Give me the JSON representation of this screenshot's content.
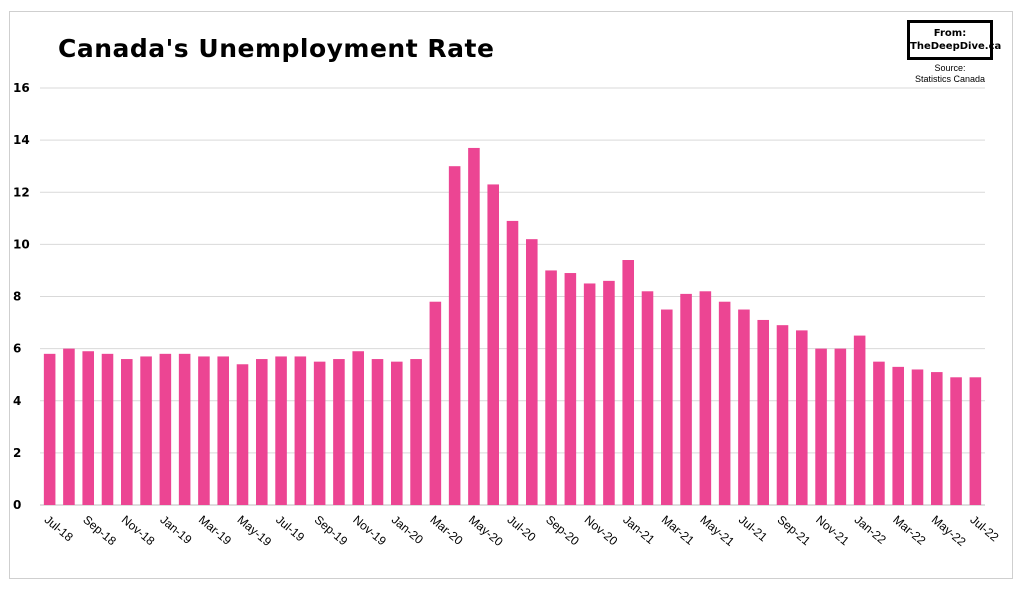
{
  "chart_data": {
    "type": "bar",
    "title": "Canada's Unemployment Rate",
    "xlabel": "",
    "ylabel": "",
    "ylim": [
      0,
      16
    ],
    "yticks": [
      0,
      2,
      4,
      6,
      8,
      10,
      12,
      14,
      16
    ],
    "grid": true,
    "bar_color": "#ec4593",
    "categories": [
      "Jul-18",
      "Aug-18",
      "Sep-18",
      "Oct-18",
      "Nov-18",
      "Dec-18",
      "Jan-19",
      "Feb-19",
      "Mar-19",
      "Apr-19",
      "May-19",
      "Jun-19",
      "Jul-19",
      "Aug-19",
      "Sep-19",
      "Oct-19",
      "Nov-19",
      "Dec-19",
      "Jan-20",
      "Feb-20",
      "Mar-20",
      "Apr-20",
      "May-20",
      "Jun-20",
      "Jul-20",
      "Aug-20",
      "Sep-20",
      "Oct-20",
      "Nov-20",
      "Dec-20",
      "Jan-21",
      "Feb-21",
      "Mar-21",
      "Apr-21",
      "May-21",
      "Jun-21",
      "Jul-21",
      "Aug-21",
      "Sep-21",
      "Oct-21",
      "Nov-21",
      "Dec-21",
      "Jan-22",
      "Feb-22",
      "Mar-22",
      "Apr-22",
      "May-22",
      "Jun-22",
      "Jul-22"
    ],
    "tick_labels": [
      "Jul-18",
      "",
      "Sep-18",
      "",
      "Nov-18",
      "",
      "Jan-19",
      "",
      "Mar-19",
      "",
      "May-19",
      "",
      "Jul-19",
      "",
      "Sep-19",
      "",
      "Nov-19",
      "",
      "Jan-20",
      "",
      "Mar-20",
      "",
      "May-20",
      "",
      "Jul-20",
      "",
      "Sep-20",
      "",
      "Nov-20",
      "",
      "Jan-21",
      "",
      "Mar-21",
      "",
      "May-21",
      "",
      "Jul-21",
      "",
      "Sep-21",
      "",
      "Nov-21",
      "",
      "Jan-22",
      "",
      "Mar-22",
      "",
      "May-22",
      "",
      "Jul-22"
    ],
    "values": [
      5.8,
      6.0,
      5.9,
      5.8,
      5.6,
      5.7,
      5.8,
      5.8,
      5.7,
      5.7,
      5.4,
      5.6,
      5.7,
      5.7,
      5.5,
      5.6,
      5.9,
      5.6,
      5.5,
      5.6,
      7.8,
      13.0,
      13.7,
      12.3,
      10.9,
      10.2,
      9.0,
      8.9,
      8.5,
      8.6,
      9.4,
      8.2,
      7.5,
      8.1,
      8.2,
      7.8,
      7.5,
      7.1,
      6.9,
      6.7,
      6.0,
      6.0,
      6.5,
      5.5,
      5.3,
      5.2,
      5.1,
      4.9,
      4.9
    ]
  },
  "badge": {
    "line1": "From:",
    "line2": "TheDeepDive.ca"
  },
  "source": {
    "line1": "Source:",
    "line2": "Statistics Canada"
  }
}
